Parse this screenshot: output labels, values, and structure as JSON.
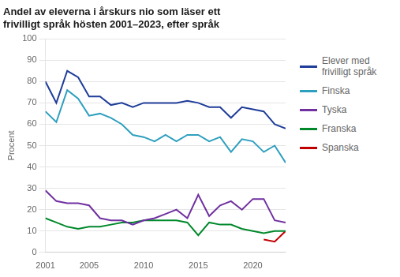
{
  "chart_data": {
    "type": "line",
    "title": [
      "Andel av eleverna i årskurs nio som läser ett",
      "frivilligt språk hösten 2001–2023, efter språk"
    ],
    "y_label": "Procent",
    "x": [
      2001,
      2002,
      2003,
      2004,
      2005,
      2006,
      2007,
      2008,
      2009,
      2010,
      2011,
      2012,
      2013,
      2014,
      2015,
      2016,
      2017,
      2018,
      2019,
      2020,
      2021,
      2022,
      2023
    ],
    "series": [
      {
        "name": "Elever med\nfrivilligt språk",
        "color": "#1f3d99",
        "values": [
          80,
          70,
          85,
          82,
          73,
          73,
          69,
          70,
          68,
          70,
          70,
          70,
          70,
          71,
          70,
          68,
          68,
          63,
          68,
          67,
          66,
          60,
          58
        ]
      },
      {
        "name": "Finska",
        "color": "#2e9fbf",
        "values": [
          66,
          61,
          76,
          72,
          64,
          65,
          63,
          60,
          55,
          54,
          52,
          55,
          52,
          55,
          55,
          52,
          54,
          47,
          53,
          52,
          47,
          50,
          42
        ]
      },
      {
        "name": "Tyska",
        "color": "#7030a0",
        "values": [
          29,
          24,
          23,
          23,
          22,
          16,
          15,
          15,
          13,
          15,
          16,
          18,
          20,
          16,
          27,
          17,
          22,
          24,
          20,
          25,
          25,
          15,
          14
        ]
      },
      {
        "name": "Franska",
        "color": "#00882b",
        "values": [
          16,
          14,
          12,
          11,
          12,
          12,
          13,
          14,
          14,
          15,
          15,
          15,
          15,
          14,
          8,
          14,
          13,
          13,
          11,
          10,
          9,
          10,
          10
        ]
      },
      {
        "name": "Spanska",
        "color": "#c00000",
        "values": [
          null,
          null,
          null,
          null,
          null,
          null,
          null,
          null,
          null,
          null,
          null,
          null,
          null,
          null,
          null,
          null,
          null,
          null,
          null,
          null,
          6,
          5,
          10
        ]
      }
    ],
    "xlim": [
      2001,
      2023
    ],
    "xticks": [
      2001,
      2005,
      2010,
      2015,
      2020
    ],
    "ylim": [
      0,
      100
    ],
    "yticks": [
      0,
      10,
      20,
      30,
      40,
      50,
      60,
      70,
      80,
      90,
      100
    ],
    "grid": "y",
    "legend": "right"
  }
}
